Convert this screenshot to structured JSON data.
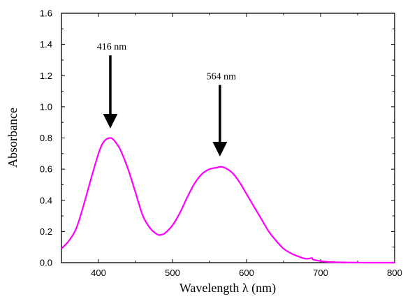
{
  "chart_data": {
    "type": "line",
    "xlabel": "Wavelength λ (nm)",
    "ylabel": "Absorbance",
    "xlim": [
      350,
      800
    ],
    "ylim": [
      0.0,
      1.6
    ],
    "x_ticks": [
      "400",
      "500",
      "600",
      "700",
      "800"
    ],
    "y_ticks": [
      "0.0",
      "0.2",
      "0.4",
      "0.6",
      "0.8",
      "1.0",
      "1.2",
      "1.4",
      "1.6"
    ],
    "grid": false,
    "line_color": "#ff00ff",
    "series": [
      {
        "x": [
          350,
          360,
          370,
          380,
          390,
          400,
          405,
          410,
          416,
          420,
          425,
          430,
          440,
          450,
          460,
          470,
          480,
          485,
          490,
          500,
          510,
          520,
          530,
          540,
          550,
          560,
          564,
          570,
          580,
          590,
          600,
          610,
          620,
          630,
          640,
          650,
          660,
          670,
          680,
          688,
          690,
          700,
          710,
          720,
          730,
          740,
          760,
          780,
          800
        ],
        "y": [
          0.09,
          0.14,
          0.22,
          0.37,
          0.54,
          0.7,
          0.76,
          0.79,
          0.8,
          0.79,
          0.76,
          0.72,
          0.6,
          0.45,
          0.3,
          0.22,
          0.18,
          0.18,
          0.19,
          0.24,
          0.32,
          0.42,
          0.51,
          0.57,
          0.6,
          0.61,
          0.615,
          0.61,
          0.58,
          0.52,
          0.44,
          0.36,
          0.28,
          0.2,
          0.14,
          0.09,
          0.06,
          0.04,
          0.025,
          0.03,
          0.02,
          0.01,
          0.005,
          0.003,
          0.002,
          0.001,
          0.0,
          0.0,
          0.0
        ]
      }
    ],
    "annotations": [
      {
        "text": "416 nm",
        "x": 416,
        "y_tip": 0.84,
        "y_tail": 1.33
      },
      {
        "text": "564 nm",
        "x": 564,
        "y_tip": 0.66,
        "y_tail": 1.14
      }
    ]
  }
}
